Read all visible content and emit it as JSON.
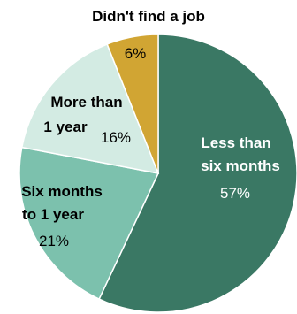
{
  "chart_data": {
    "type": "pie",
    "title": "",
    "slices": [
      {
        "label_lines": [
          "Less than",
          "six months"
        ],
        "value": 57,
        "pct_label": "57%",
        "color": "#3a7864",
        "label_color": "#ffffff",
        "pct_color": "#ffffff"
      },
      {
        "label_lines": [
          "Six months",
          "to 1 year"
        ],
        "value": 21,
        "pct_label": "21%",
        "color": "#7cc1ad",
        "label_color": "#000000",
        "pct_color": "#000000"
      },
      {
        "label_lines": [
          "More than",
          "1 year"
        ],
        "value": 16,
        "pct_label": "16%",
        "color": "#d3ebe3",
        "label_color": "#000000",
        "pct_color": "#000000"
      },
      {
        "label_lines": [
          "Didn't find a job"
        ],
        "value": 6,
        "pct_label": "6%",
        "color": "#d1a533",
        "label_color": "#000000",
        "pct_color": "#000000"
      }
    ]
  }
}
